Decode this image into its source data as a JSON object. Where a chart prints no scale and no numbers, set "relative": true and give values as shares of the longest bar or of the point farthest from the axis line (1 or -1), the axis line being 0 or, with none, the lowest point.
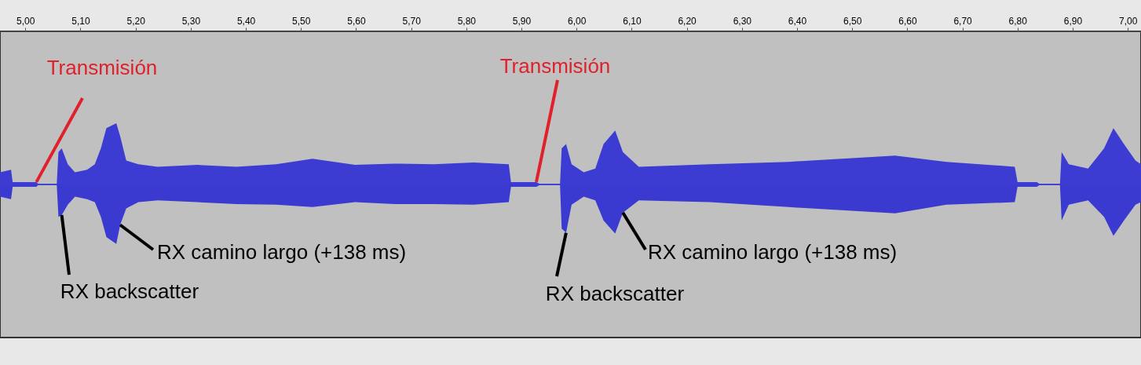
{
  "chart_data": {
    "type": "area",
    "relative": true,
    "x": [
      4.954,
      4.974,
      4.977,
      5.02,
      5.023,
      5.057,
      5.06,
      5.066,
      5.077,
      5.09,
      5.112,
      5.126,
      5.137,
      5.147,
      5.165,
      5.172,
      5.183,
      5.205,
      5.24,
      5.312,
      5.383,
      5.455,
      5.521,
      5.598,
      5.67,
      5.741,
      5.813,
      5.877,
      5.881,
      5.927,
      5.933,
      5.97,
      5.973,
      5.981,
      5.991,
      6.013,
      6.034,
      6.049,
      6.07,
      6.084,
      6.113,
      6.242,
      6.385,
      6.578,
      6.671,
      6.795,
      6.8,
      6.835,
      6.84,
      6.877,
      6.88,
      6.893,
      6.928,
      6.957,
      6.974,
      6.993,
      7.014,
      7.024
    ],
    "series": [
      {
        "color": "#3c3cd2",
        "values": [
          0.2,
          0.24,
          0.04,
          0.04,
          0.01,
          0.01,
          0.53,
          0.59,
          0.33,
          0.2,
          0.24,
          0.33,
          0.59,
          0.92,
          1,
          0.79,
          0.39,
          0.33,
          0.29,
          0.32,
          0.29,
          0.33,
          0.42,
          0.32,
          0.34,
          0.33,
          0.36,
          0.33,
          0.04,
          0.04,
          0.01,
          0.01,
          0.59,
          0.66,
          0.33,
          0.2,
          0.26,
          0.66,
          0.88,
          0.53,
          0.29,
          0.33,
          0.37,
          0.47,
          0.37,
          0.29,
          0.04,
          0.04,
          0.01,
          0.01,
          0.53,
          0.33,
          0.26,
          0.59,
          0.92,
          0.66,
          0.39,
          0.33
        ]
      },
      {
        "color": "#3a3ad0",
        "values": [
          -0.2,
          -0.24,
          -0.04,
          -0.04,
          -0.01,
          -0.01,
          -0.53,
          -0.5,
          -0.33,
          -0.2,
          -0.24,
          -0.29,
          -0.53,
          -0.86,
          -0.97,
          -0.66,
          -0.39,
          -0.29,
          -0.26,
          -0.29,
          -0.32,
          -0.33,
          -0.37,
          -0.29,
          -0.32,
          -0.32,
          -0.33,
          -0.29,
          -0.04,
          -0.04,
          -0.01,
          -0.01,
          -0.72,
          -0.79,
          -0.33,
          -0.2,
          -0.26,
          -0.59,
          -0.8,
          -0.46,
          -0.26,
          -0.29,
          -0.37,
          -0.47,
          -0.33,
          -0.29,
          -0.04,
          -0.04,
          -0.01,
          -0.01,
          -0.59,
          -0.33,
          -0.26,
          -0.53,
          -0.84,
          -0.59,
          -0.33,
          -0.29
        ]
      }
    ],
    "xlim": [
      4.954,
      7.024
    ],
    "xticks": [
      {
        "value": 5,
        "label": "5,00"
      },
      {
        "value": 5.1,
        "label": "5,10"
      },
      {
        "value": 5.2,
        "label": "5,20"
      },
      {
        "value": 5.3,
        "label": "5,30"
      },
      {
        "value": 5.4,
        "label": "5,40"
      },
      {
        "value": 5.5,
        "label": "5,50"
      },
      {
        "value": 5.6,
        "label": "5,60"
      },
      {
        "value": 5.7,
        "label": "5,70"
      },
      {
        "value": 5.8,
        "label": "5,80"
      },
      {
        "value": 5.9,
        "label": "5,90"
      },
      {
        "value": 6,
        "label": "6,00"
      },
      {
        "value": 6.1,
        "label": "6,10"
      },
      {
        "value": 6.2,
        "label": "6,20"
      },
      {
        "value": 6.3,
        "label": "6,30"
      },
      {
        "value": 6.4,
        "label": "6,40"
      },
      {
        "value": 6.5,
        "label": "6,50"
      },
      {
        "value": 6.6,
        "label": "6,60"
      },
      {
        "value": 6.7,
        "label": "6,70"
      },
      {
        "value": 6.8,
        "label": "6,80"
      },
      {
        "value": 6.9,
        "label": "6,90"
      },
      {
        "value": 7,
        "label": "7,00"
      }
    ],
    "grid": false,
    "ref_lines": [
      {
        "axis": "y",
        "value": 0,
        "color": "#3c3cd2"
      }
    ],
    "annotations": [
      {
        "text": "Transmisión",
        "x": 5.02,
        "y": 0.04
      },
      {
        "text": "RX backscatter",
        "x": 5.066,
        "y": -0.5
      },
      {
        "text": "RX camino largo (+138 ms)",
        "x": 5.172,
        "y": -0.66
      },
      {
        "text": "Transmisión",
        "x": 5.927,
        "y": 0.04
      },
      {
        "text": "RX backscatter",
        "x": 5.981,
        "y": -0.79
      },
      {
        "text": "RX camino largo (+138 ms)",
        "x": 6.084,
        "y": -0.46
      }
    ]
  }
}
